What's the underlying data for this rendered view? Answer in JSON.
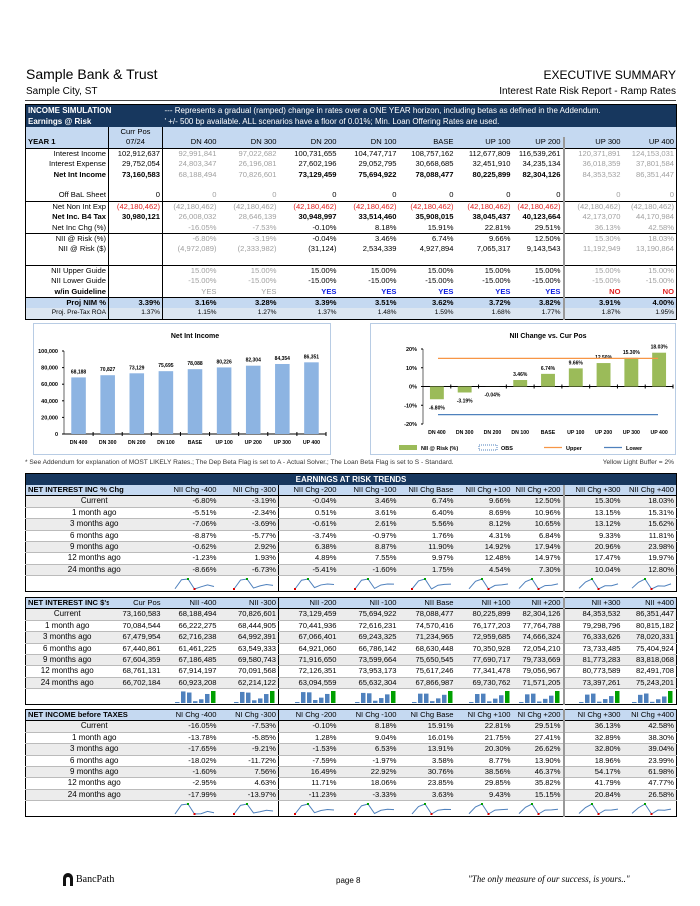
{
  "header": {
    "bank": "Sample Bank & Trust",
    "city": "Sample City, ST",
    "title": "EXECUTIVE SUMMARY",
    "subtitle": "Interest Rate Risk Report - Ramp Rates"
  },
  "top": {
    "title1": "INCOME SIMULATION",
    "title2": "Earnings @ Risk",
    "note1": "--- Represents a gradual (ramped)  change in rates over a ONE YEAR horizon, including betas as defined in the Addendum.",
    "note2": "' +/- 500 bp available. ALL scenarios have a floor of 0.01%;   Min. Loan Offering Rates are used.",
    "year": "YEAR 1",
    "currpos": "Curr Pos",
    "date": "07/24",
    "cols": [
      "DN 400",
      "DN 300",
      "DN 200",
      "DN 100",
      "BASE",
      "UP 100",
      "UP 200",
      "UP 300",
      "UP 400"
    ],
    "rows": [
      {
        "label": "Interest Income",
        "cells": [
          "102,912,637",
          "92,991,841",
          "97,022,682",
          "100,731,655",
          "104,747,717",
          "108,757,162",
          "112,677,809",
          "116,539,261",
          "120,371,891",
          "124,153,031"
        ]
      },
      {
        "label": "Interest Expense",
        "cells": [
          "29,752,054",
          "24,803,347",
          "26,196,081",
          "27,602,196",
          "29,052,795",
          "30,668,685",
          "32,451,910",
          "34,235,134",
          "36,018,359",
          "37,801,584"
        ]
      },
      {
        "label": "Net Int Income",
        "cells": [
          "73,160,583",
          "68,188,494",
          "70,826,601",
          "73,129,459",
          "75,694,922",
          "78,088,477",
          "80,225,899",
          "82,304,126",
          "84,353,532",
          "86,351,447"
        ]
      },
      {
        "label": "",
        "cells": [
          "",
          "",
          "",
          "",
          "",
          "",
          "",
          "",
          "",
          ""
        ]
      },
      {
        "label": "Off BaL Sheet",
        "cells": [
          "0",
          "0",
          "0",
          "0",
          "0",
          "0",
          "0",
          "0",
          "0",
          "0"
        ]
      },
      {
        "label": "Net Non Int Exp",
        "cells": [
          "(42,180,462)",
          "(42,180,462)",
          "(42,180,462)",
          "(42,180,462)",
          "(42,180,462)",
          "(42,180,462)",
          "(42,180,462)",
          "(42,180,462)",
          "(42,180,462)",
          "(42,180,462)"
        ]
      },
      {
        "label": "Net Inc. B4 Tax",
        "cells": [
          "30,980,121",
          "26,008,032",
          "28,646,139",
          "30,948,997",
          "33,514,460",
          "35,908,015",
          "38,045,437",
          "40,123,664",
          "42,173,070",
          "44,170,984"
        ]
      },
      {
        "label": "Net Inc Chg (%)",
        "cells": [
          "",
          "-16.05%",
          "-7.53%",
          "-0.10%",
          "8.18%",
          "15.91%",
          "22.81%",
          "29.51%",
          "36.13%",
          "42.58%"
        ]
      },
      {
        "label": "NII @ Risk (%)",
        "cells": [
          "",
          "-6.80%",
          "-3.19%",
          "-0.04%",
          "3.46%",
          "6.74%",
          "9.66%",
          "12.50%",
          "15.30%",
          "18.03%"
        ]
      },
      {
        "label": "NII @ Risk ($)",
        "cells": [
          "",
          "(4,972,089)",
          "(2,333,982)",
          "(31,124)",
          "2,534,339",
          "4,927,894",
          "7,065,317",
          "9,143,543",
          "11,192,949",
          "13,190,864"
        ]
      },
      {
        "label": "",
        "cells": [
          "",
          "",
          "",
          "",
          "",
          "",
          "",
          "",
          "",
          ""
        ]
      },
      {
        "label": "NII Upper Guide",
        "cells": [
          "",
          "15.00%",
          "15.00%",
          "15.00%",
          "15.00%",
          "15.00%",
          "15.00%",
          "15.00%",
          "15.00%",
          "15.00%"
        ]
      },
      {
        "label": "NII Lower Guide",
        "cells": [
          "",
          "-15.00%",
          "-15.00%",
          "-15.00%",
          "-15.00%",
          "-15.00%",
          "-15.00%",
          "-15.00%",
          "-15.00%",
          "-15.00%"
        ]
      },
      {
        "label": "w/in Guideline",
        "cells": [
          "",
          "YES",
          "YES",
          "YES",
          "YES",
          "YES",
          "YES",
          "YES",
          "NO",
          "NO"
        ]
      },
      {
        "label": "Proj NIM %",
        "cells": [
          "3.39%",
          "3.16%",
          "3.28%",
          "3.39%",
          "3.51%",
          "3.62%",
          "3.72%",
          "3.82%",
          "3.91%",
          "4.00%"
        ]
      },
      {
        "label": "Proj. Pre-Tax ROA",
        "cells": [
          "1.37%",
          "1.15%",
          "1.27%",
          "1.37%",
          "1.48%",
          "1.59%",
          "1.68%",
          "1.77%",
          "1.87%",
          "1.95%"
        ]
      }
    ]
  },
  "chart_data": [
    {
      "type": "bar",
      "title": "Net Int Income",
      "categories": [
        "DN 400",
        "DN 300",
        "DN 200",
        "DN 100",
        "BASE",
        "UP 100",
        "UP 200",
        "UP 300",
        "UP 400"
      ],
      "values": [
        68188,
        70827,
        73129,
        75695,
        78088,
        80226,
        82304,
        84354,
        86351
      ],
      "labels": [
        "68,188",
        "70,827",
        "73,129",
        "75,695",
        "78,088",
        "80,226",
        "82,304",
        "84,354",
        "86,351"
      ],
      "yticks": [
        "0",
        "20,000",
        "40,000",
        "60,000",
        "80,000",
        "100,000"
      ],
      "ylim": [
        0,
        100000
      ],
      "color": "#8db4e2"
    },
    {
      "type": "bar",
      "title": "NII Change vs. Cur Pos",
      "categories": [
        "DN 400",
        "DN 300",
        "DN 200",
        "DN 100",
        "BASE",
        "UP 100",
        "UP 200",
        "UP 300",
        "UP 400"
      ],
      "values": [
        -6.8,
        -3.19,
        -0.04,
        3.46,
        6.74,
        9.66,
        12.5,
        15.3,
        18.03
      ],
      "labels": [
        "-6.80%",
        "-3.19%",
        "-0.04%",
        "3.46%",
        "6.74%",
        "9.66%",
        "12.50%",
        "15.30%",
        "18.03%"
      ],
      "yticks": [
        "-20%",
        "-10%",
        "0%",
        "10%",
        "20%"
      ],
      "ylim": [
        -20,
        20
      ],
      "upper": 15,
      "lower": -15,
      "legend": [
        "NII @ Risk (%)",
        "OBS",
        "Upper",
        "Lower"
      ],
      "legend_position": "bottom",
      "colors": {
        "bar": "#9bbb59",
        "upper": "#f79646",
        "lower": "#4f81bd"
      }
    }
  ],
  "footnote": "* See Addendum for explanation of MOST LIKELY Rates.;   The Dep Beta Flag is set to A - Actual Solver.;  The Loan Beta Flag is set to S - Standard.",
  "buffer": "Yellow Light Buffer = 2%",
  "trends_title": "EARNINGS AT RISK TRENDS",
  "periods": [
    "Current",
    "1 month ago",
    "3 months ago",
    "6 months ago",
    "9 months ago",
    "12 months ago",
    "24 months ago"
  ],
  "pct": {
    "title": "NET INTEREST INC % Chg",
    "cols": [
      "NII Chg -400",
      "NII Chg -300",
      "NII Chg -200",
      "NII Chg -100",
      "NII Chg Base",
      "NII Chg +100",
      "NII Chg +200",
      "NII Chg +300",
      "NII Chg +400"
    ],
    "rows": [
      [
        "-6.80%",
        "-3.19%",
        "-0.04%",
        "3.46%",
        "6.74%",
        "9.66%",
        "12.50%",
        "15.30%",
        "18.03%"
      ],
      [
        "-5.51%",
        "-2.34%",
        "0.51%",
        "3.61%",
        "6.40%",
        "8.69%",
        "10.96%",
        "13.15%",
        "15.31%"
      ],
      [
        "-7.06%",
        "-3.69%",
        "-0.61%",
        "2.61%",
        "5.56%",
        "8.12%",
        "10.65%",
        "13.12%",
        "15.62%"
      ],
      [
        "-8.87%",
        "-5.77%",
        "-3.74%",
        "-0.97%",
        "1.76%",
        "4.31%",
        "6.84%",
        "9.33%",
        "11.81%"
      ],
      [
        "-0.62%",
        "2.92%",
        "6.38%",
        "8.87%",
        "11.90%",
        "14.92%",
        "17.94%",
        "20.96%",
        "23.98%"
      ],
      [
        "-1.23%",
        "1.93%",
        "4.89%",
        "7.55%",
        "9.97%",
        "12.48%",
        "14.97%",
        "17.47%",
        "19.97%"
      ],
      [
        "-8.66%",
        "-6.73%",
        "-5.41%",
        "-1.60%",
        "1.75%",
        "4.54%",
        "7.30%",
        "10.04%",
        "12.80%"
      ]
    ]
  },
  "dol": {
    "title": "NET INTEREST INC $'s",
    "cols": [
      "Cur Pos",
      "NII -400",
      "NII -300",
      "NII -200",
      "NII -100",
      "NII Base",
      "NII +100",
      "NII +200",
      "NII +300",
      "NII +400"
    ],
    "rows": [
      [
        "73,160,583",
        "68,188,494",
        "70,826,601",
        "73,129,459",
        "75,694,922",
        "78,088,477",
        "80,225,899",
        "82,304,126",
        "84,353,532",
        "86,351,447"
      ],
      [
        "70,084,544",
        "66,222,275",
        "68,444,905",
        "70,441,936",
        "72,616,231",
        "74,570,416",
        "76,177,203",
        "77,764,788",
        "79,298,796",
        "80,815,182"
      ],
      [
        "67,479,954",
        "62,716,238",
        "64,992,391",
        "67,066,401",
        "69,243,325",
        "71,234,965",
        "72,959,685",
        "74,666,324",
        "76,333,626",
        "78,020,331"
      ],
      [
        "67,440,861",
        "61,461,225",
        "63,549,333",
        "64,921,060",
        "66,786,142",
        "68,630,448",
        "70,350,928",
        "72,054,210",
        "73,733,485",
        "75,404,924"
      ],
      [
        "67,604,359",
        "67,186,485",
        "69,580,743",
        "71,916,650",
        "73,599,664",
        "75,650,545",
        "77,690,717",
        "79,733,669",
        "81,773,283",
        "83,818,068"
      ],
      [
        "68,761,131",
        "67,914,197",
        "70,091,568",
        "72,126,351",
        "73,953,173",
        "75,617,246",
        "77,341,478",
        "79,056,967",
        "80,773,589",
        "82,491,708"
      ],
      [
        "66,702,184",
        "60,923,208",
        "62,214,122",
        "63,094,559",
        "65,632,304",
        "67,866,987",
        "69,730,762",
        "71,571,205",
        "73,397,261",
        "75,243,201"
      ]
    ]
  },
  "ni": {
    "title": "NET INCOME before TAXES",
    "cols": [
      "NI Chg -400",
      "NI Chg -300",
      "NI Chg -200",
      "NI Chg -100",
      "NI Chg Base",
      "NI Chg +100",
      "NI Chg +200",
      "NI Chg +300",
      "NI Chg +400"
    ],
    "rows": [
      [
        "-16.05%",
        "-7.53%",
        "-0.10%",
        "8.18%",
        "15.91%",
        "22.81%",
        "29.51%",
        "36.13%",
        "42.58%"
      ],
      [
        "-13.78%",
        "-5.85%",
        "1.28%",
        "9.04%",
        "16.01%",
        "21.75%",
        "27.41%",
        "32.89%",
        "38.30%"
      ],
      [
        "-17.65%",
        "-9.21%",
        "-1.53%",
        "6.53%",
        "13.91%",
        "20.30%",
        "26.62%",
        "32.80%",
        "39.04%"
      ],
      [
        "-18.02%",
        "-11.72%",
        "-7.59%",
        "-1.97%",
        "3.58%",
        "8.77%",
        "13.90%",
        "18.96%",
        "23.99%"
      ],
      [
        "-1.60%",
        "7.56%",
        "16.49%",
        "22.92%",
        "30.76%",
        "38.56%",
        "46.37%",
        "54.17%",
        "61.98%"
      ],
      [
        "-2.95%",
        "4.63%",
        "11.71%",
        "18.06%",
        "23.85%",
        "29.85%",
        "35.82%",
        "41.79%",
        "47.77%"
      ],
      [
        "-17.99%",
        "-13.97%",
        "-11.23%",
        "-3.33%",
        "3.63%",
        "9.43%",
        "15.15%",
        "20.84%",
        "26.58%"
      ]
    ]
  },
  "footer": {
    "logo": "BancPath",
    "page": "page 8",
    "tagline": "\"The only measure of our success, is yours..\""
  }
}
